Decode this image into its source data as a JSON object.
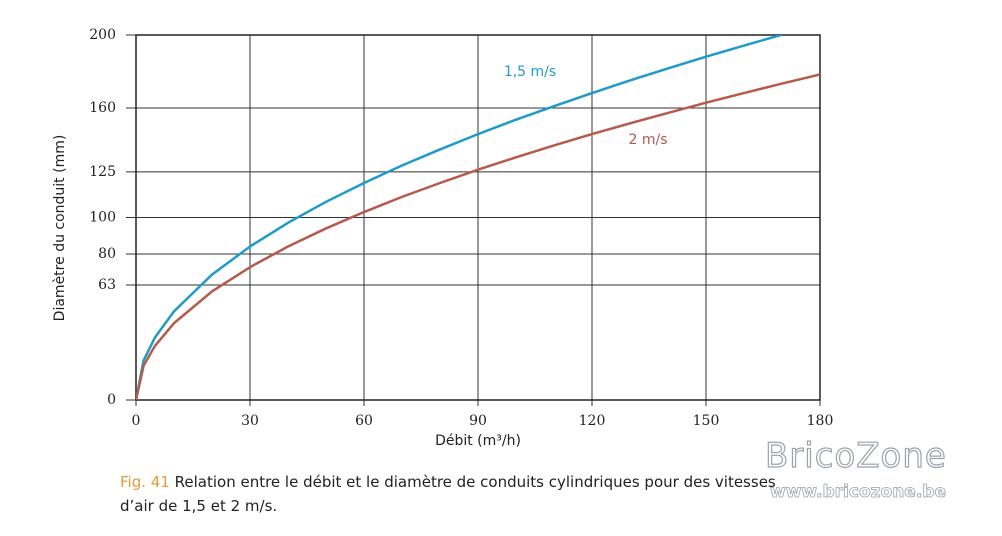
{
  "chart_data": {
    "type": "line",
    "x_label": "Débit (m³/h)",
    "y_label": "Diamètre du conduit (mm)",
    "x": [
      0,
      2,
      5,
      10,
      20,
      30,
      40,
      50,
      60,
      70,
      80,
      90,
      100,
      110,
      120,
      130,
      140,
      150,
      160,
      170,
      180
    ],
    "series": [
      {
        "name": "1,5 m/s",
        "color": "#1f9bcb",
        "values": [
          0,
          21.7,
          34.3,
          48.6,
          68.7,
          84.1,
          97.1,
          108.6,
          118.9,
          128.5,
          137.3,
          145.7,
          153.6,
          161.0,
          168.2,
          175.1,
          181.7,
          188.1,
          194.2,
          200.2,
          null
        ]
      },
      {
        "name": "2 m/s",
        "color": "#b65a4b",
        "values": [
          0,
          18.8,
          29.7,
          42.1,
          59.5,
          72.8,
          84.1,
          94.0,
          103.0,
          111.3,
          118.9,
          126.2,
          133.0,
          139.5,
          145.7,
          151.6,
          157.3,
          162.9,
          168.2,
          173.4,
          178.4
        ]
      }
    ],
    "xlim": [
      0,
      180
    ],
    "xticks": [
      0,
      30,
      60,
      90,
      120,
      150,
      180
    ],
    "ylim": [
      0,
      200
    ],
    "yticks": [
      0,
      63,
      80,
      100,
      125,
      160,
      200
    ],
    "grid": true
  },
  "caption": {
    "label": "Fig. 41",
    "text": "Relation entre le débit et le diamètre de conduits cylindriques pour des vitesses d’air de 1,5 et 2 m/s."
  },
  "watermark": {
    "brand": "BricoZone",
    "url": "www.bricozone.be"
  }
}
